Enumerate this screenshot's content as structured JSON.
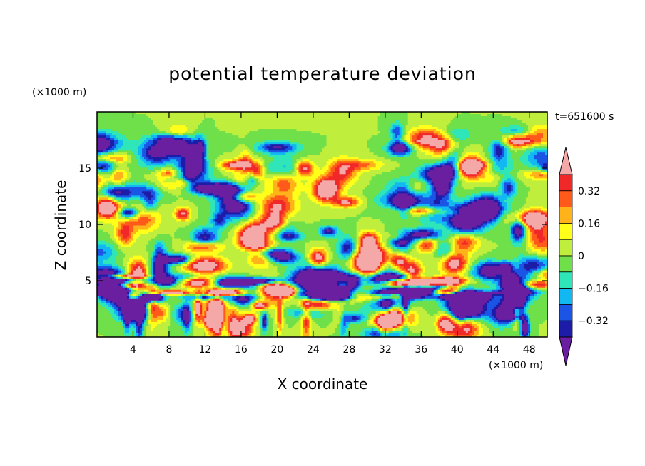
{
  "chart_data": {
    "type": "heatmap",
    "title": "potential temperature deviation",
    "xlabel": "X coordinate",
    "ylabel": "Z coordinate",
    "x_unit_label": "(×1000 m)",
    "y_unit_label": "(×1000 m)",
    "time_label": "t=651600 s",
    "xlim": [
      0,
      50
    ],
    "ylim": [
      0,
      20
    ],
    "xticks": [
      4,
      8,
      12,
      16,
      20,
      24,
      28,
      32,
      36,
      40,
      44,
      48
    ],
    "yticks": [
      5,
      10,
      15
    ],
    "colorbar": {
      "levels": [
        -0.4,
        -0.32,
        -0.24,
        -0.16,
        -0.08,
        0,
        0.08,
        0.16,
        0.24,
        0.32,
        0.4
      ],
      "labeled_ticks": [
        {
          "value": 0.32,
          "label": "0.32"
        },
        {
          "value": 0.16,
          "label": "0.16"
        },
        {
          "value": 0,
          "label": "0"
        },
        {
          "value": -0.16,
          "label": "−0.16"
        },
        {
          "value": -0.32,
          "label": "−0.32"
        }
      ],
      "colors": [
        "#6a1fa0",
        "#1c1ca8",
        "#1b55e6",
        "#12b8f2",
        "#2ee6b8",
        "#6fe04a",
        "#c0ee3c",
        "#ffff1a",
        "#ffb21a",
        "#ff5a1a",
        "#f02828",
        "#f5a8a8"
      ],
      "extend": "both"
    }
  }
}
